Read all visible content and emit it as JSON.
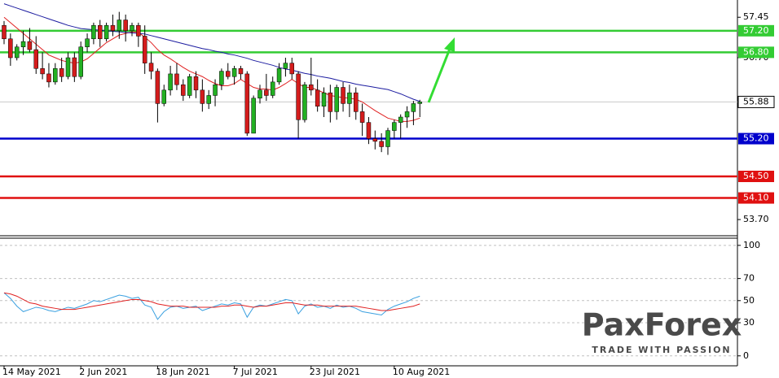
{
  "chart_data": [
    {
      "type": "candlestick",
      "categories": [
        "14 May 2021",
        null,
        null,
        null,
        null,
        null,
        null,
        null,
        null,
        null,
        null,
        null,
        "2 Jun 2021",
        null,
        null,
        null,
        null,
        null,
        null,
        null,
        null,
        null,
        null,
        null,
        "18 Jun 2021",
        null,
        null,
        null,
        null,
        null,
        null,
        null,
        null,
        null,
        null,
        null,
        "7 Jul 2021",
        null,
        null,
        null,
        null,
        null,
        null,
        null,
        null,
        null,
        null,
        null,
        "23 Jul 2021",
        null,
        null,
        null,
        null,
        null,
        null,
        null,
        null,
        null,
        null,
        null,
        null,
        "10 Aug 2021",
        null,
        null,
        null,
        null
      ],
      "open": [
        57.3,
        57.05,
        56.7,
        56.9,
        57.0,
        56.85,
        56.5,
        56.4,
        56.25,
        56.5,
        56.35,
        56.7,
        56.35,
        56.9,
        57.05,
        57.3,
        57.05,
        57.3,
        57.2,
        57.4,
        57.2,
        57.3,
        57.1,
        56.6,
        56.45,
        55.85,
        56.1,
        56.4,
        56.2,
        56.0,
        56.35,
        56.1,
        55.85,
        56.0,
        56.2,
        56.45,
        56.35,
        56.5,
        56.4,
        55.3,
        55.95,
        56.1,
        56.0,
        56.25,
        56.5,
        56.6,
        56.4,
        55.55,
        56.2,
        56.1,
        55.8,
        56.05,
        55.7,
        56.15,
        55.85,
        56.05,
        55.7,
        55.5,
        55.2,
        55.15,
        55.05,
        55.35,
        55.5,
        55.6,
        55.7,
        55.85
      ],
      "high": [
        57.38,
        57.15,
        56.95,
        57.2,
        57.25,
        57.1,
        56.8,
        56.6,
        56.6,
        56.7,
        56.8,
        56.8,
        57.0,
        57.15,
        57.35,
        57.4,
        57.35,
        57.5,
        57.55,
        57.5,
        57.35,
        57.35,
        57.3,
        56.8,
        56.5,
        56.2,
        56.55,
        56.6,
        56.3,
        56.4,
        56.45,
        56.3,
        56.1,
        56.3,
        56.5,
        56.6,
        56.55,
        56.55,
        56.45,
        56.0,
        56.2,
        56.4,
        56.35,
        56.6,
        56.7,
        56.7,
        56.45,
        56.25,
        56.7,
        56.3,
        56.15,
        56.2,
        56.2,
        56.25,
        56.2,
        56.15,
        55.85,
        55.6,
        55.35,
        55.3,
        55.4,
        55.55,
        55.65,
        55.8,
        55.9,
        55.92
      ],
      "low": [
        56.95,
        56.55,
        56.65,
        56.75,
        56.8,
        56.4,
        56.3,
        56.15,
        56.2,
        56.25,
        56.3,
        56.25,
        56.3,
        56.8,
        56.95,
        56.9,
        57.0,
        57.1,
        57.05,
        57.0,
        57.1,
        56.9,
        56.4,
        56.3,
        55.5,
        55.8,
        56.0,
        56.1,
        55.9,
        55.95,
        55.95,
        55.7,
        55.75,
        55.8,
        56.1,
        56.3,
        56.2,
        56.3,
        55.25,
        55.3,
        55.85,
        55.9,
        55.95,
        56.2,
        56.35,
        56.3,
        55.2,
        55.5,
        56.0,
        55.7,
        55.6,
        55.5,
        55.55,
        55.7,
        55.6,
        55.55,
        55.25,
        55.1,
        55.0,
        54.95,
        54.9,
        55.2,
        55.2,
        55.4,
        55.45,
        55.6
      ],
      "close": [
        57.05,
        56.7,
        56.9,
        57.0,
        56.85,
        56.5,
        56.4,
        56.25,
        56.5,
        56.35,
        56.7,
        56.35,
        56.9,
        57.05,
        57.3,
        57.05,
        57.3,
        57.2,
        57.4,
        57.2,
        57.3,
        57.1,
        56.6,
        56.45,
        55.85,
        56.1,
        56.4,
        56.2,
        56.0,
        56.35,
        56.1,
        55.85,
        56.0,
        56.2,
        56.45,
        56.35,
        56.5,
        56.4,
        55.3,
        55.95,
        56.1,
        56.0,
        56.25,
        56.5,
        56.6,
        56.4,
        55.55,
        56.2,
        56.1,
        55.8,
        56.05,
        55.7,
        56.15,
        55.85,
        56.05,
        55.7,
        55.5,
        55.2,
        55.15,
        55.05,
        55.35,
        55.5,
        55.6,
        55.7,
        55.85,
        55.88
      ],
      "up_color": "#22b022",
      "down_color": "#d41c1c",
      "moving_averages": [
        {
          "color": "#e02020",
          "values": [
            57.45,
            57.35,
            57.25,
            57.15,
            57.05,
            56.95,
            56.85,
            56.75,
            56.7,
            56.65,
            56.62,
            56.6,
            56.62,
            56.68,
            56.78,
            56.88,
            56.98,
            57.05,
            57.12,
            57.15,
            57.18,
            57.17,
            57.08,
            56.98,
            56.85,
            56.75,
            56.68,
            56.6,
            56.52,
            56.45,
            56.4,
            56.35,
            56.28,
            56.22,
            56.18,
            56.18,
            56.22,
            56.3,
            56.22,
            56.15,
            56.12,
            56.12,
            56.1,
            56.15,
            56.22,
            56.3,
            56.22,
            56.15,
            56.15,
            56.1,
            56.05,
            56.0,
            55.98,
            55.96,
            55.95,
            55.93,
            55.88,
            55.8,
            55.72,
            55.65,
            55.58,
            55.55,
            55.52,
            55.52,
            55.54,
            55.58
          ]
        },
        {
          "color": "#1c1ca0",
          "values": [
            57.7,
            57.66,
            57.62,
            57.58,
            57.54,
            57.5,
            57.46,
            57.42,
            57.38,
            57.34,
            57.3,
            57.27,
            57.24,
            57.23,
            57.22,
            57.21,
            57.2,
            57.19,
            57.18,
            57.17,
            57.16,
            57.15,
            57.14,
            57.11,
            57.08,
            57.05,
            57.02,
            56.99,
            56.96,
            56.93,
            56.9,
            56.87,
            56.85,
            56.82,
            56.8,
            56.77,
            56.75,
            56.72,
            56.69,
            56.65,
            56.62,
            56.59,
            56.56,
            56.52,
            56.49,
            56.47,
            56.44,
            56.41,
            56.39,
            56.36,
            56.34,
            56.32,
            56.29,
            56.26,
            56.24,
            56.21,
            56.19,
            56.17,
            56.15,
            56.13,
            56.11,
            56.07,
            56.03,
            55.98,
            55.93,
            55.89
          ]
        }
      ],
      "ylim": [
        53.4,
        57.77
      ],
      "yticks": [
        57.45,
        {
          "value": 56.7,
          "label": "56.70"
        },
        {
          "value": 53.7,
          "label": "53.70"
        }
      ],
      "levels": [
        {
          "value": 57.2,
          "label": "57.20",
          "color": "#33cc33"
        },
        {
          "value": 56.8,
          "label": "56.80",
          "color": "#33cc33"
        },
        {
          "value": 55.2,
          "label": "55.20",
          "color": "#0000cc"
        },
        {
          "value": 54.5,
          "label": "54.50",
          "color": "#e01010"
        },
        {
          "value": 54.1,
          "label": "54.10",
          "color": "#e01010"
        }
      ],
      "current_price": 55.88
    },
    {
      "type": "line",
      "series": [
        {
          "color": "#3aa0e0",
          "values": [
            57,
            52,
            45,
            40,
            42,
            44,
            43,
            41,
            40,
            42,
            44,
            43,
            45,
            47,
            50,
            49,
            51,
            53,
            55,
            54,
            52,
            53,
            46,
            44,
            33,
            40,
            44,
            45,
            43,
            44,
            45,
            41,
            43,
            45,
            47,
            46,
            48,
            47,
            35,
            44,
            46,
            45,
            47,
            49,
            51,
            50,
            38,
            45,
            47,
            44,
            45,
            43,
            46,
            44,
            45,
            43,
            40,
            39,
            38,
            37,
            42,
            45,
            47,
            49,
            52,
            54
          ]
        },
        {
          "color": "#e02020",
          "values": [
            57,
            56,
            54,
            51,
            48,
            47,
            45,
            44,
            43,
            42,
            42,
            42,
            43,
            44,
            45,
            46,
            47,
            48,
            49,
            50,
            51,
            51,
            50,
            49,
            47,
            46,
            45,
            45,
            45,
            44,
            44,
            44,
            44,
            44,
            45,
            45,
            46,
            46,
            45,
            44,
            45,
            45,
            46,
            47,
            48,
            48,
            47,
            46,
            46,
            46,
            45,
            45,
            45,
            45,
            45,
            45,
            44,
            43,
            42,
            41,
            41,
            42,
            43,
            44,
            45,
            47
          ]
        }
      ],
      "ylim": [
        -9,
        106.5
      ],
      "yticks": [
        100,
        70,
        50,
        30,
        0
      ],
      "grid": true
    }
  ],
  "logo": {
    "name": "PaxForex",
    "tagline": "TRADE WITH PASSION"
  }
}
